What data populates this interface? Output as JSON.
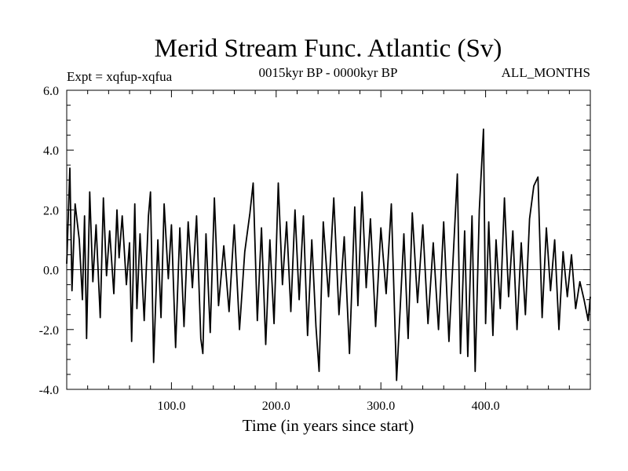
{
  "chart_data": {
    "type": "line",
    "title": "Merid Stream Func. Atlantic (Sv)",
    "subtitle_left": "Expt = xqfup-xqfua",
    "subtitle_center": "0015kyr BP - 0000kyr BP",
    "subtitle_right": "ALL_MONTHS",
    "xlabel": "Time (in years since start)",
    "ylabel": "",
    "xlim": [
      0,
      500
    ],
    "ylim": [
      -4.0,
      6.0
    ],
    "xticks": [
      100,
      200,
      300,
      400
    ],
    "xtick_labels": [
      "100.0",
      "200.0",
      "300.0",
      "400.0"
    ],
    "yticks": [
      -4,
      -2,
      0,
      2,
      4,
      6
    ],
    "ytick_labels": [
      "-4.0",
      "-2.0",
      "0.0",
      "2.0",
      "4.0",
      "6.0"
    ],
    "zero_line": 0.0,
    "series": [
      {
        "name": "Merid Stream Func. Atlantic",
        "x": [
          0,
          3,
          5,
          8,
          12,
          15,
          17,
          19,
          22,
          25,
          28,
          32,
          35,
          38,
          41,
          45,
          48,
          50,
          53,
          57,
          60,
          62,
          65,
          67,
          70,
          74,
          78,
          80,
          83,
          87,
          90,
          93,
          97,
          100,
          104,
          108,
          112,
          116,
          120,
          124,
          128,
          130,
          133,
          137,
          141,
          145,
          150,
          155,
          160,
          165,
          170,
          175,
          178,
          182,
          186,
          190,
          194,
          198,
          202,
          206,
          210,
          214,
          218,
          222,
          226,
          230,
          234,
          238,
          241,
          245,
          250,
          255,
          260,
          265,
          270,
          275,
          278,
          282,
          286,
          290,
          295,
          300,
          305,
          310,
          315,
          318,
          322,
          326,
          330,
          335,
          340,
          345,
          350,
          355,
          360,
          365,
          370,
          373,
          376,
          380,
          383,
          387,
          390,
          394,
          398,
          400,
          403,
          407,
          410,
          414,
          418,
          422,
          426,
          430,
          434,
          438,
          442,
          446,
          450,
          454,
          458,
          462,
          466,
          470,
          474,
          478,
          482,
          486,
          490,
          494,
          498,
          500
        ],
        "values": [
          0.2,
          3.4,
          -0.7,
          2.2,
          1.0,
          -1.0,
          1.8,
          -2.3,
          2.6,
          -0.4,
          1.5,
          -1.6,
          2.4,
          -0.2,
          1.3,
          -0.8,
          2.0,
          0.4,
          1.8,
          -0.5,
          0.9,
          -2.4,
          2.2,
          -1.3,
          1.2,
          -1.7,
          1.8,
          2.6,
          -3.1,
          1.0,
          -1.6,
          2.2,
          -0.3,
          1.5,
          -2.6,
          1.4,
          -1.9,
          1.6,
          -0.6,
          1.8,
          -2.3,
          -2.8,
          1.2,
          -2.1,
          2.4,
          -1.2,
          0.8,
          -1.4,
          1.5,
          -2.0,
          0.6,
          1.9,
          2.9,
          -1.7,
          1.4,
          -2.5,
          1.0,
          -1.8,
          2.9,
          -0.5,
          1.6,
          -1.4,
          2.0,
          -1.0,
          1.8,
          -2.2,
          1.0,
          -1.9,
          -3.4,
          1.6,
          -0.9,
          2.4,
          -1.5,
          1.1,
          -2.8,
          2.1,
          -1.2,
          2.6,
          -0.6,
          1.7,
          -1.9,
          1.4,
          -0.8,
          2.2,
          -3.7,
          -1.6,
          1.2,
          -2.3,
          1.9,
          -1.1,
          1.5,
          -1.8,
          0.9,
          -2.0,
          1.6,
          -2.4,
          1.1,
          3.2,
          -2.8,
          1.3,
          -2.9,
          1.8,
          -3.4,
          2.0,
          4.7,
          -1.8,
          1.6,
          -2.2,
          1.0,
          -1.3,
          2.4,
          -0.9,
          1.3,
          -2.0,
          0.9,
          -1.5,
          1.7,
          2.8,
          3.1,
          -1.6,
          1.4,
          -0.7,
          1.0,
          -2.0,
          0.6,
          -0.9,
          0.5,
          -1.3,
          -0.4,
          -1.0,
          -1.7,
          -0.9
        ]
      }
    ]
  }
}
